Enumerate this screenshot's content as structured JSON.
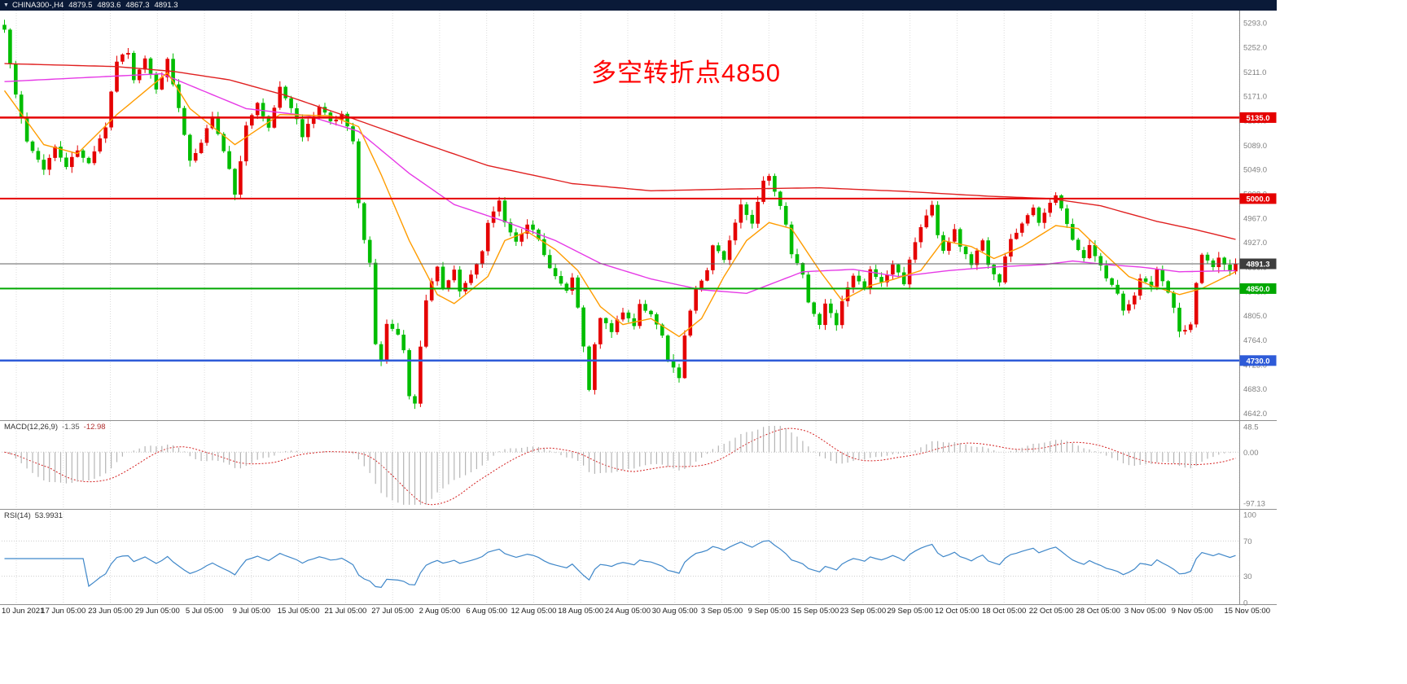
{
  "window": {
    "dropdown_icon": "▼",
    "symbol": "CHINA300-,H4",
    "open": "4879.5",
    "high": "4893.6",
    "low": "4867.3",
    "close": "4891.3"
  },
  "annotation": {
    "text": "多空转折点4850",
    "color": "#ff0000"
  },
  "chart_data": {
    "type": "candlestick",
    "symbol": "CHINA300-",
    "timeframe": "H4",
    "title": "CHINA300-,H4 4879.5 4893.6 4867.3 4891.3",
    "last_price": 4891.3,
    "price_range": [
      4632,
      5312
    ],
    "candle_count": 220,
    "up_color": "#e50000",
    "down_color": "#00bd00",
    "color_note": "red candle = bullish, green candle = bearish (Chinese convention)",
    "close_anchors": [
      [
        0,
        5285
      ],
      [
        2,
        5170
      ],
      [
        4,
        5095
      ],
      [
        7,
        5050
      ],
      [
        9,
        5085
      ],
      [
        11,
        5055
      ],
      [
        13,
        5080
      ],
      [
        15,
        5060
      ],
      [
        18,
        5120
      ],
      [
        20,
        5230
      ],
      [
        22,
        5245
      ],
      [
        23,
        5200
      ],
      [
        25,
        5235
      ],
      [
        27,
        5180
      ],
      [
        29,
        5230
      ],
      [
        31,
        5150
      ],
      [
        33,
        5060
      ],
      [
        35,
        5090
      ],
      [
        37,
        5140
      ],
      [
        40,
        5050
      ],
      [
        41,
        5010
      ],
      [
        43,
        5120
      ],
      [
        45,
        5160
      ],
      [
        47,
        5115
      ],
      [
        49,
        5185
      ],
      [
        52,
        5135
      ],
      [
        53,
        5105
      ],
      [
        56,
        5155
      ],
      [
        58,
        5130
      ],
      [
        60,
        5140
      ],
      [
        62,
        5095
      ],
      [
        63,
        4990
      ],
      [
        64,
        4930
      ],
      [
        65,
        4890
      ],
      [
        66,
        4760
      ],
      [
        67,
        4730
      ],
      [
        68,
        4790
      ],
      [
        70,
        4770
      ],
      [
        71,
        4745
      ],
      [
        72,
        4670
      ],
      [
        73,
        4655
      ],
      [
        74,
        4750
      ],
      [
        75,
        4830
      ],
      [
        77,
        4890
      ],
      [
        78,
        4850
      ],
      [
        80,
        4880
      ],
      [
        81,
        4845
      ],
      [
        83,
        4870
      ],
      [
        85,
        4910
      ],
      [
        86,
        4960
      ],
      [
        88,
        4995
      ],
      [
        89,
        4960
      ],
      [
        91,
        4930
      ],
      [
        93,
        4960
      ],
      [
        95,
        4930
      ],
      [
        96,
        4905
      ],
      [
        98,
        4870
      ],
      [
        100,
        4845
      ],
      [
        101,
        4865
      ],
      [
        102,
        4820
      ],
      [
        104,
        4680
      ],
      [
        105,
        4755
      ],
      [
        106,
        4800
      ],
      [
        108,
        4780
      ],
      [
        110,
        4810
      ],
      [
        112,
        4790
      ],
      [
        113,
        4825
      ],
      [
        115,
        4805
      ],
      [
        117,
        4770
      ],
      [
        118,
        4730
      ],
      [
        120,
        4700
      ],
      [
        121,
        4770
      ],
      [
        123,
        4850
      ],
      [
        125,
        4880
      ],
      [
        126,
        4920
      ],
      [
        128,
        4900
      ],
      [
        130,
        4960
      ],
      [
        131,
        4990
      ],
      [
        133,
        4960
      ],
      [
        135,
        5030
      ],
      [
        136,
        5040
      ],
      [
        138,
        4990
      ],
      [
        139,
        4960
      ],
      [
        140,
        4910
      ],
      [
        142,
        4870
      ],
      [
        143,
        4830
      ],
      [
        145,
        4790
      ],
      [
        146,
        4825
      ],
      [
        148,
        4790
      ],
      [
        149,
        4830
      ],
      [
        151,
        4870
      ],
      [
        153,
        4850
      ],
      [
        154,
        4880
      ],
      [
        156,
        4860
      ],
      [
        158,
        4890
      ],
      [
        160,
        4860
      ],
      [
        161,
        4900
      ],
      [
        163,
        4950
      ],
      [
        165,
        4990
      ],
      [
        166,
        4940
      ],
      [
        167,
        4910
      ],
      [
        169,
        4950
      ],
      [
        170,
        4920
      ],
      [
        172,
        4890
      ],
      [
        174,
        4930
      ],
      [
        175,
        4890
      ],
      [
        177,
        4860
      ],
      [
        178,
        4905
      ],
      [
        179,
        4930
      ],
      [
        181,
        4955
      ],
      [
        183,
        4985
      ],
      [
        184,
        4960
      ],
      [
        186,
        4990
      ],
      [
        187,
        5005
      ],
      [
        189,
        4960
      ],
      [
        190,
        4930
      ],
      [
        192,
        4900
      ],
      [
        193,
        4920
      ],
      [
        195,
        4890
      ],
      [
        196,
        4870
      ],
      [
        198,
        4840
      ],
      [
        199,
        4810
      ],
      [
        201,
        4840
      ],
      [
        202,
        4870
      ],
      [
        204,
        4850
      ],
      [
        205,
        4880
      ],
      [
        206,
        4860
      ],
      [
        208,
        4820
      ],
      [
        209,
        4775
      ],
      [
        211,
        4790
      ],
      [
        212,
        4860
      ],
      [
        213,
        4905
      ],
      [
        215,
        4885
      ],
      [
        216,
        4900
      ],
      [
        218,
        4878
      ],
      [
        219,
        4891.3
      ]
    ],
    "ma_lines": [
      {
        "name": "slow-ma-line",
        "color": "#e02020",
        "anchors": [
          [
            0,
            5225
          ],
          [
            20,
            5220
          ],
          [
            30,
            5212
          ],
          [
            40,
            5198
          ],
          [
            50,
            5172
          ],
          [
            60,
            5140
          ],
          [
            72,
            5100
          ],
          [
            86,
            5055
          ],
          [
            101,
            5025
          ],
          [
            115,
            5013
          ],
          [
            130,
            5016
          ],
          [
            145,
            5018
          ],
          [
            160,
            5012
          ],
          [
            175,
            5004
          ],
          [
            186,
            5000
          ],
          [
            195,
            4988
          ],
          [
            205,
            4962
          ],
          [
            212,
            4948
          ],
          [
            219,
            4932
          ]
        ]
      },
      {
        "name": "mid-ma-line",
        "color": "#e63ae6",
        "anchors": [
          [
            0,
            5195
          ],
          [
            15,
            5202
          ],
          [
            28,
            5208
          ],
          [
            43,
            5150
          ],
          [
            54,
            5138
          ],
          [
            63,
            5112
          ],
          [
            72,
            5042
          ],
          [
            80,
            4990
          ],
          [
            89,
            4962
          ],
          [
            98,
            4930
          ],
          [
            106,
            4892
          ],
          [
            115,
            4866
          ],
          [
            124,
            4848
          ],
          [
            132,
            4842
          ],
          [
            142,
            4878
          ],
          [
            151,
            4882
          ],
          [
            159,
            4870
          ],
          [
            168,
            4880
          ],
          [
            176,
            4886
          ],
          [
            185,
            4890
          ],
          [
            190,
            4896
          ],
          [
            196,
            4890
          ],
          [
            202,
            4886
          ],
          [
            209,
            4878
          ],
          [
            219,
            4880
          ]
        ]
      },
      {
        "name": "fast-ma-line",
        "color": "#ff9c00",
        "anchors": [
          [
            0,
            5180
          ],
          [
            7,
            5090
          ],
          [
            13,
            5075
          ],
          [
            20,
            5140
          ],
          [
            29,
            5210
          ],
          [
            33,
            5150
          ],
          [
            41,
            5090
          ],
          [
            49,
            5140
          ],
          [
            58,
            5138
          ],
          [
            63,
            5120
          ],
          [
            67,
            5040
          ],
          [
            72,
            4930
          ],
          [
            77,
            4840
          ],
          [
            80,
            4825
          ],
          [
            86,
            4870
          ],
          [
            89,
            4930
          ],
          [
            93,
            4945
          ],
          [
            98,
            4915
          ],
          [
            102,
            4880
          ],
          [
            106,
            4820
          ],
          [
            110,
            4790
          ],
          [
            115,
            4800
          ],
          [
            120,
            4770
          ],
          [
            124,
            4800
          ],
          [
            128,
            4870
          ],
          [
            132,
            4930
          ],
          [
            136,
            4960
          ],
          [
            140,
            4950
          ],
          [
            145,
            4880
          ],
          [
            149,
            4830
          ],
          [
            154,
            4855
          ],
          [
            158,
            4865
          ],
          [
            163,
            4880
          ],
          [
            167,
            4930
          ],
          [
            172,
            4920
          ],
          [
            176,
            4900
          ],
          [
            181,
            4920
          ],
          [
            187,
            4955
          ],
          [
            191,
            4950
          ],
          [
            196,
            4905
          ],
          [
            200,
            4870
          ],
          [
            204,
            4855
          ],
          [
            209,
            4840
          ],
          [
            213,
            4850
          ],
          [
            219,
            4878
          ]
        ]
      }
    ],
    "hlines": [
      {
        "price": 5135.0,
        "label": "5135.0",
        "color": "#e50000",
        "tag_color": "#e50000",
        "width": 2.5
      },
      {
        "price": 5000.0,
        "label": "5000.0",
        "color": "#e50000",
        "tag_color": "#e50000",
        "width": 2
      },
      {
        "price": 4891.3,
        "label": "4891.3",
        "color": "#606060",
        "tag_color": "#3d3d3d",
        "width": 1
      },
      {
        "price": 4850.0,
        "label": "4850.0",
        "color": "#00a800",
        "tag_color": "#00a800",
        "width": 2
      },
      {
        "price": 4730.0,
        "label": "4730.0",
        "color": "#2e5bd8",
        "tag_color": "#2e5bd8",
        "width": 2.5
      }
    ],
    "y_axis_labels": [
      "5293.0",
      "5252.0",
      "5211.0",
      "5171.0",
      "5130.0",
      "5089.0",
      "5049.0",
      "5008.0",
      "4967.0",
      "4927.0",
      "4886.0",
      "4845.0",
      "4805.0",
      "4764.0",
      "4723.0",
      "4683.0",
      "4642.0"
    ],
    "x_axis_labels": [
      "10 Jun 2021",
      "17 Jun 05:00",
      "23 Jun 05:00",
      "29 Jun 05:00",
      "5 Jul 05:00",
      "9 Jul 05:00",
      "15 Jul 05:00",
      "21 Jul 05:00",
      "27 Jul 05:00",
      "2 Aug 05:00",
      "6 Aug 05:00",
      "12 Aug 05:00",
      "18 Aug 05:00",
      "24 Aug 05:00",
      "30 Aug 05:00",
      "3 Sep 05:00",
      "9 Sep 05:00",
      "15 Sep 05:00",
      "23 Sep 05:00",
      "29 Sep 05:00",
      "12 Oct 05:00",
      "18 Oct 05:00",
      "22 Oct 05:00",
      "28 Oct 05:00",
      "3 Nov 05:00",
      "9 Nov 05:00",
      "15 Nov 05:00"
    ],
    "indicators": {
      "macd": {
        "name": "MACD(12,26,9)",
        "main_value": "-1.35",
        "signal_value": "-12.98",
        "fast": 12,
        "slow": 26,
        "signal": 9,
        "axis": [
          {
            "label": "48.5",
            "value": 48.5
          },
          {
            "label": "0.00",
            "value": 0
          },
          {
            "label": "-97.13",
            "value": -97.13
          }
        ],
        "histogram_color": "#b5b5b5",
        "signal_color": "#d42020"
      },
      "rsi": {
        "name": "RSI(14)",
        "value": "53.9931",
        "period": 14,
        "axis": [
          {
            "label": "100",
            "value": 100
          },
          {
            "label": "70",
            "value": 70
          },
          {
            "label": "30",
            "value": 30
          },
          {
            "label": "0",
            "value": 0
          }
        ],
        "levels": [
          70,
          30
        ],
        "line_color": "#3f87c9"
      }
    }
  }
}
